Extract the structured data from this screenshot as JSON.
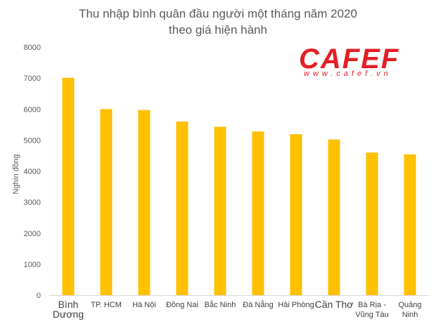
{
  "chart_data": {
    "type": "bar",
    "title_lines": [
      "Thu nhập bình quân đầu người một tháng năm 2020",
      "theo giá hiện hành"
    ],
    "ylabel": "Nghìn đồng",
    "xlabel": "",
    "ylim": [
      0,
      8000
    ],
    "yticks": [
      0,
      1000,
      2000,
      3000,
      4000,
      5000,
      6000,
      7000,
      8000
    ],
    "grid": false,
    "bar_color": "#ffc000",
    "categories": [
      [
        "Bình",
        "Dương"
      ],
      [
        "TP. HCM"
      ],
      [
        "Hà Nội"
      ],
      [
        "Đồng Nai"
      ],
      [
        "Bắc Ninh"
      ],
      [
        "Đà Nẵng"
      ],
      [
        "Hải Phòng"
      ],
      [
        "Cần Thơ"
      ],
      [
        "Bà Rịa -",
        "Vũng Tàu"
      ],
      [
        "Quảng",
        "Ninh"
      ]
    ],
    "values": [
      7010,
      6000,
      5970,
      5600,
      5430,
      5280,
      5190,
      5020,
      4600,
      4540
    ]
  },
  "logo": {
    "word": "CAFEF",
    "url": "www.cafef.vn",
    "color": "#e31e24"
  }
}
